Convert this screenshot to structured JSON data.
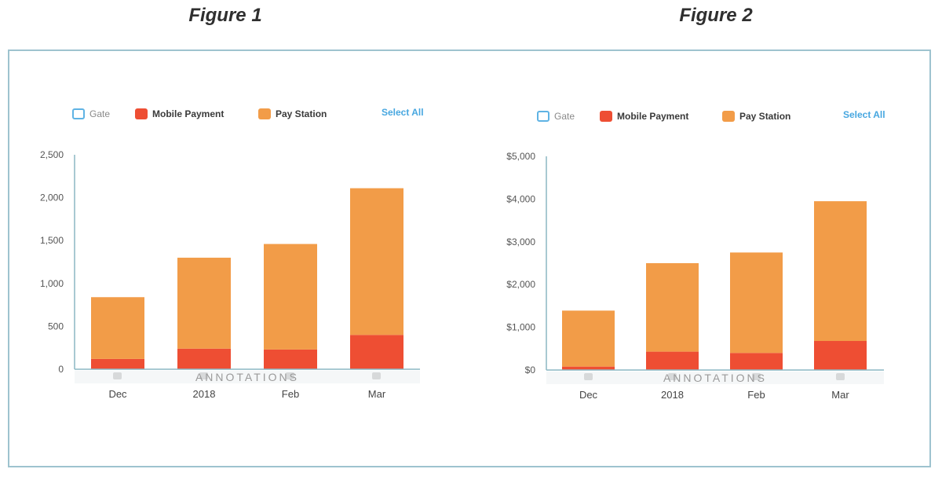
{
  "figures": {
    "fig1_title": "Figure 1",
    "fig2_title": "Figure 2"
  },
  "legend": {
    "gate": "Gate",
    "mobile_payment": "Mobile Payment",
    "pay_station": "Pay Station",
    "select_all": "Select All"
  },
  "colors": {
    "mobile_payment": "#ee4e33",
    "pay_station": "#f29c48",
    "gate_outline": "#5fb3e4",
    "axis": "#8bb7c4",
    "frame": "#9ec3cf"
  },
  "watermark": "ANNOTATIONS",
  "chart_data": [
    {
      "type": "bar",
      "stacked": true,
      "title": "Figure 1",
      "categories": [
        "Dec",
        "2018",
        "Feb",
        "Mar"
      ],
      "series": [
        {
          "name": "Mobile Payment",
          "values": [
            120,
            240,
            230,
            400
          ]
        },
        {
          "name": "Pay Station",
          "values": [
            720,
            1060,
            1230,
            1710
          ]
        }
      ],
      "ylim": [
        0,
        2500
      ],
      "yticks": [
        "0",
        "500",
        "1,000",
        "1,500",
        "2,000",
        "2,500"
      ],
      "legend_position": "top",
      "grid": false
    },
    {
      "type": "bar",
      "stacked": true,
      "title": "Figure 2",
      "categories": [
        "Dec",
        "2018",
        "Feb",
        "Mar"
      ],
      "series": [
        {
          "name": "Mobile Payment",
          "values": [
            80,
            430,
            400,
            680
          ]
        },
        {
          "name": "Pay Station",
          "values": [
            1310,
            2070,
            2350,
            3270
          ]
        }
      ],
      "ylim": [
        0,
        5000
      ],
      "yticks": [
        "$0",
        "$1,000",
        "$2,000",
        "$3,000",
        "$4,000",
        "$5,000"
      ],
      "legend_position": "top",
      "grid": false
    }
  ]
}
